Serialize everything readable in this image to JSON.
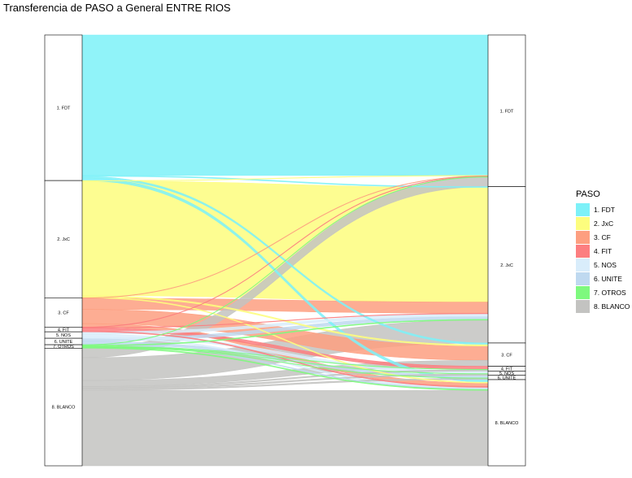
{
  "chart_data": {
    "type": "alluvial",
    "title": "Transferencia de PASO a General ENTRE RIOS",
    "axes": [
      "PASO",
      "General"
    ],
    "legend": {
      "title": "PASO",
      "position": "right",
      "items": [
        {
          "label": "1. FDT",
          "color": "#7DF1F8"
        },
        {
          "label": "2. JxC",
          "color": "#FDFD7E"
        },
        {
          "label": "3. CF",
          "color": "#FD9F80"
        },
        {
          "label": "4. FIT",
          "color": "#FC7E80"
        },
        {
          "label": "5. NOS",
          "color": "#D9EDFB"
        },
        {
          "label": "6. UNITE",
          "color": "#BFD9F0"
        },
        {
          "label": "7. OTROS",
          "color": "#7EF97E"
        },
        {
          "label": "8. BLANCO",
          "color": "#C3C3C1"
        }
      ]
    },
    "left_strata": [
      {
        "label": "1. FDT",
        "value": 33.8
      },
      {
        "label": "2. JxC",
        "value": 27.2
      },
      {
        "label": "3. CF",
        "value": 6.8
      },
      {
        "label": "4. FIT",
        "value": 1.1
      },
      {
        "label": "5. NOS",
        "value": 1.5
      },
      {
        "label": "6. UNITE",
        "value": 1.5
      },
      {
        "label": "7. OTROS",
        "value": 0.8
      },
      {
        "label": "8. BLANCO",
        "value": 27.3
      }
    ],
    "right_strata": [
      {
        "label": "1. FDT",
        "value": 35.2
      },
      {
        "label": "2. JxC",
        "value": 36.3
      },
      {
        "label": "3. CF",
        "value": 5.4
      },
      {
        "label": "4. FIT",
        "value": 1.1
      },
      {
        "label": "5. NOS",
        "value": 1.0
      },
      {
        "label": "6. UNITE",
        "value": 1.0
      },
      {
        "label": "8. BLANCO",
        "value": 20.0
      }
    ],
    "flows": [
      {
        "from": "1. FDT",
        "to": "1. FDT",
        "value": 32.6
      },
      {
        "from": "1. FDT",
        "to": "2. JxC",
        "value": 0.2
      },
      {
        "from": "1. FDT",
        "to": "3. CF",
        "value": 0.4
      },
      {
        "from": "1. FDT",
        "to": "8. BLANCO",
        "value": 0.6
      },
      {
        "from": "2. JxC",
        "to": "1. FDT",
        "value": 0.1
      },
      {
        "from": "2. JxC",
        "to": "2. JxC",
        "value": 26.6
      },
      {
        "from": "2. JxC",
        "to": "3. CF",
        "value": 0.3
      },
      {
        "from": "2. JxC",
        "to": "8. BLANCO",
        "value": 0.2
      },
      {
        "from": "3. CF",
        "to": "1. FDT",
        "value": 0.1
      },
      {
        "from": "3. CF",
        "to": "2. JxC",
        "value": 2.6
      },
      {
        "from": "3. CF",
        "to": "3. CF",
        "value": 3.3
      },
      {
        "from": "3. CF",
        "to": "8. BLANCO",
        "value": 0.8
      },
      {
        "from": "4. FIT",
        "to": "1. FDT",
        "value": 0.1
      },
      {
        "from": "4. FIT",
        "to": "2. JxC",
        "value": 0.1
      },
      {
        "from": "4. FIT",
        "to": "4. FIT",
        "value": 0.7
      },
      {
        "from": "4. FIT",
        "to": "8. BLANCO",
        "value": 0.2
      },
      {
        "from": "5. NOS",
        "to": "2. JxC",
        "value": 0.6
      },
      {
        "from": "5. NOS",
        "to": "5. NOS",
        "value": 0.6
      },
      {
        "from": "5. NOS",
        "to": "8. BLANCO",
        "value": 0.3
      },
      {
        "from": "6. UNITE",
        "to": "2. JxC",
        "value": 0.7
      },
      {
        "from": "6. UNITE",
        "to": "6. UNITE",
        "value": 0.6
      },
      {
        "from": "6. UNITE",
        "to": "8. BLANCO",
        "value": 0.2
      },
      {
        "from": "7. OTROS",
        "to": "1. FDT",
        "value": 0.1
      },
      {
        "from": "7. OTROS",
        "to": "2. JxC",
        "value": 0.2
      },
      {
        "from": "7. OTROS",
        "to": "4. FIT",
        "value": 0.1
      },
      {
        "from": "7. OTROS",
        "to": "5. NOS",
        "value": 0.1
      },
      {
        "from": "7. OTROS",
        "to": "6. UNITE",
        "value": 0.1
      },
      {
        "from": "7. OTROS",
        "to": "8. BLANCO",
        "value": 0.2
      },
      {
        "from": "8. BLANCO",
        "to": "1. FDT",
        "value": 2.2
      },
      {
        "from": "8. BLANCO",
        "to": "2. JxC",
        "value": 5.3
      },
      {
        "from": "8. BLANCO",
        "to": "3. CF",
        "value": 1.4
      },
      {
        "from": "8. BLANCO",
        "to": "4. FIT",
        "value": 0.3
      },
      {
        "from": "8. BLANCO",
        "to": "5. NOS",
        "value": 0.3
      },
      {
        "from": "8. BLANCO",
        "to": "6. UNITE",
        "value": 0.3
      },
      {
        "from": "8. BLANCO",
        "to": "8. BLANCO",
        "value": 17.5
      }
    ]
  }
}
